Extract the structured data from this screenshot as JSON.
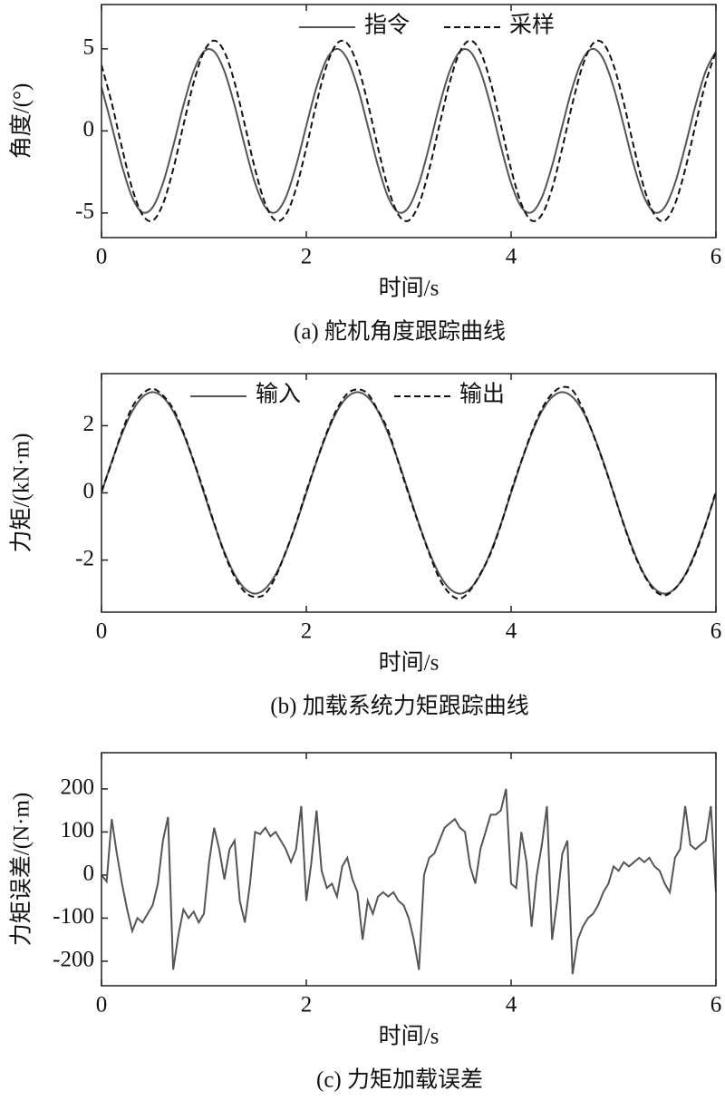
{
  "chart_data": [
    {
      "type": "line",
      "title": "(a) 舵机角度跟踪曲线",
      "xlabel": "时间/s",
      "ylabel": "角度/(°)",
      "xlim": [
        0,
        6
      ],
      "xticks": [
        0,
        2,
        4,
        6
      ],
      "ylim": [
        -6.5,
        7.7
      ],
      "yticks": [
        5,
        0,
        -5
      ],
      "legend": "upper center",
      "smooth": true,
      "x": [
        0,
        0.1,
        0.2,
        0.3,
        0.4,
        0.5,
        0.6,
        0.7,
        0.8,
        0.9,
        1,
        1.1,
        1.2,
        1.3,
        1.4,
        1.5,
        1.6,
        1.7,
        1.8,
        1.9,
        2,
        2.1,
        2.2,
        2.3,
        2.4,
        2.5,
        2.6,
        2.7,
        2.8,
        2.9,
        3,
        3.1,
        3.2,
        3.3,
        3.4,
        3.5,
        3.6,
        3.7,
        3.8,
        3.9,
        4,
        4.1,
        4.2,
        4.3,
        4.4,
        4.5,
        4.6,
        4.7,
        4.8,
        4.9,
        5,
        5.1,
        5.2,
        5.3,
        5.4,
        5.5,
        5.6,
        5.7,
        5.8,
        5.9,
        6
      ],
      "series": [
        {
          "name": "指令",
          "color": "#555555",
          "line_style": "solid",
          "values": [
            2.68,
            0.31,
            -2.13,
            -4.05,
            -4.96,
            -4.65,
            -3.19,
            -0.94,
            1.55,
            3.64,
            4.84,
            4.84,
            3.64,
            1.55,
            -0.94,
            -3.19,
            -4.65,
            -4.96,
            -4.05,
            -2.13,
            0.31,
            2.68,
            4.38,
            5,
            4.38,
            2.68,
            0.31,
            -2.13,
            -4.05,
            -4.96,
            -4.65,
            -3.19,
            -0.94,
            1.55,
            3.64,
            4.84,
            4.84,
            3.64,
            1.55,
            -0.94,
            -3.19,
            -4.65,
            -4.96,
            -4.05,
            -2.13,
            0.31,
            2.68,
            4.38,
            5,
            4.38,
            2.68,
            0.31,
            -2.13,
            -4.05,
            -4.96,
            -4.65,
            -3.19,
            -0.94,
            1.55,
            3.64,
            4.84
          ]
        },
        {
          "name": "采样",
          "color": "#111111",
          "line_style": "dashed",
          "values": [
            4.01,
            1.7,
            -1.03,
            -3.51,
            -5.11,
            -5.46,
            -4.45,
            -2.34,
            0.35,
            2.95,
            4.82,
            5.5,
            4.82,
            2.95,
            0.35,
            -2.34,
            -4.45,
            -5.46,
            -5.11,
            -3.51,
            -1.03,
            1.7,
            4.01,
            5.33,
            5.33,
            4.01,
            1.7,
            -1.03,
            -3.51,
            -5.11,
            -5.46,
            -4.45,
            -2.34,
            0.35,
            2.95,
            4.82,
            5.5,
            4.82,
            2.95,
            0.35,
            -2.34,
            -4.45,
            -5.46,
            -5.11,
            -3.51,
            -1.03,
            1.7,
            4.01,
            5.33,
            5.33,
            4.01,
            1.7,
            -1.03,
            -3.51,
            -5.11,
            -5.46,
            -4.45,
            -2.34,
            0.35,
            2.95,
            4.82
          ]
        }
      ]
    },
    {
      "type": "line",
      "title": "(b) 加载系统力矩跟踪曲线",
      "xlabel": "时间/s",
      "ylabel": "力矩/(kN·m)",
      "xlim": [
        0,
        6
      ],
      "xticks": [
        0,
        2,
        4,
        6
      ],
      "ylim": [
        -3.55,
        3.55
      ],
      "yticks": [
        2,
        0,
        -2
      ],
      "legend": "upper center",
      "smooth": true,
      "x": [
        0,
        0.1,
        0.2,
        0.3,
        0.4,
        0.5,
        0.6,
        0.7,
        0.8,
        0.9,
        1,
        1.1,
        1.2,
        1.3,
        1.4,
        1.5,
        1.6,
        1.7,
        1.8,
        1.9,
        2,
        2.1,
        2.2,
        2.3,
        2.4,
        2.5,
        2.6,
        2.7,
        2.8,
        2.9,
        3,
        3.1,
        3.2,
        3.3,
        3.4,
        3.5,
        3.6,
        3.7,
        3.8,
        3.9,
        4,
        4.1,
        4.2,
        4.3,
        4.4,
        4.5,
        4.6,
        4.7,
        4.8,
        4.9,
        5,
        5.1,
        5.2,
        5.3,
        5.4,
        5.5,
        5.6,
        5.7,
        5.8,
        5.9,
        6
      ],
      "series": [
        {
          "name": "输入",
          "color": "#555555",
          "line_style": "solid",
          "values": [
            0,
            0.93,
            1.76,
            2.43,
            2.85,
            3,
            2.85,
            2.43,
            1.76,
            0.93,
            0,
            -0.93,
            -1.76,
            -2.43,
            -2.85,
            -3,
            -2.85,
            -2.43,
            -1.76,
            -0.93,
            0,
            0.93,
            1.76,
            2.43,
            2.85,
            3,
            2.85,
            2.43,
            1.76,
            0.93,
            0,
            -0.93,
            -1.76,
            -2.43,
            -2.85,
            -3,
            -2.85,
            -2.43,
            -1.76,
            -0.93,
            0,
            0.93,
            1.76,
            2.43,
            2.85,
            3,
            2.85,
            2.43,
            1.76,
            0.93,
            0,
            -0.93,
            -1.76,
            -2.43,
            -2.85,
            -3,
            -2.85,
            -2.43,
            -1.76,
            -0.93,
            0
          ]
        },
        {
          "name": "输出",
          "color": "#111111",
          "line_style": "dashed",
          "values": [
            0.05,
            0.9,
            1.82,
            2.55,
            2.95,
            3.1,
            2.9,
            2.5,
            1.8,
            0.95,
            0.05,
            -0.9,
            -1.8,
            -2.5,
            -2.95,
            -3.1,
            -3,
            -2.5,
            -1.75,
            -0.9,
            0.05,
            0.95,
            1.8,
            2.5,
            2.95,
            3.08,
            2.95,
            2.45,
            1.85,
            0.9,
            -0.05,
            -0.95,
            -1.8,
            -2.55,
            -3,
            -3.15,
            -2.9,
            -2.4,
            -1.8,
            -0.95,
            0.05,
            0.95,
            1.8,
            2.5,
            2.95,
            3.15,
            3.05,
            2.5,
            1.75,
            0.9,
            0,
            -0.95,
            -1.8,
            -2.45,
            -2.9,
            -3.05,
            -2.85,
            -2.45,
            -1.8,
            -0.95,
            0.05
          ]
        }
      ]
    },
    {
      "type": "line",
      "title": "(c) 力矩加载误差",
      "xlabel": "时间/s",
      "ylabel": "力矩误差/(N·m)",
      "xlim": [
        0,
        6
      ],
      "xticks": [
        0,
        2,
        4,
        6
      ],
      "ylim": [
        -257,
        284
      ],
      "yticks": [
        200,
        100,
        0,
        -100,
        -200
      ],
      "smooth": false,
      "x": [
        0,
        0.05,
        0.1,
        0.15,
        0.2,
        0.25,
        0.3,
        0.35,
        0.4,
        0.45,
        0.5,
        0.55,
        0.6,
        0.65,
        0.7,
        0.75,
        0.8,
        0.85,
        0.9,
        0.95,
        1,
        1.05,
        1.1,
        1.15,
        1.2,
        1.25,
        1.3,
        1.35,
        1.4,
        1.45,
        1.5,
        1.55,
        1.6,
        1.65,
        1.7,
        1.75,
        1.8,
        1.85,
        1.9,
        1.95,
        2,
        2.05,
        2.1,
        2.15,
        2.2,
        2.25,
        2.3,
        2.35,
        2.4,
        2.45,
        2.5,
        2.55,
        2.6,
        2.65,
        2.7,
        2.75,
        2.8,
        2.85,
        2.9,
        2.95,
        3,
        3.05,
        3.1,
        3.15,
        3.2,
        3.25,
        3.3,
        3.35,
        3.4,
        3.45,
        3.5,
        3.55,
        3.6,
        3.65,
        3.7,
        3.75,
        3.8,
        3.85,
        3.9,
        3.95,
        4,
        4.05,
        4.1,
        4.15,
        4.2,
        4.25,
        4.3,
        4.35,
        4.4,
        4.45,
        4.5,
        4.55,
        4.6,
        4.65,
        4.7,
        4.75,
        4.8,
        4.85,
        4.9,
        4.95,
        5,
        5.05,
        5.1,
        5.15,
        5.2,
        5.25,
        5.3,
        5.35,
        5.4,
        5.45,
        5.5,
        5.55,
        5.6,
        5.65,
        5.7,
        5.75,
        5.8,
        5.85,
        5.9,
        5.95,
        6
      ],
      "series": [
        {
          "color": "#555555",
          "line_style": "solid",
          "values": [
            0,
            -15,
            130,
            50,
            -20,
            -80,
            -130,
            -100,
            -110,
            -90,
            -70,
            -20,
            80,
            135,
            -220,
            -140,
            -80,
            -100,
            -85,
            -110,
            -90,
            30,
            110,
            60,
            -10,
            60,
            80,
            -60,
            -110,
            -20,
            100,
            95,
            110,
            90,
            100,
            80,
            60,
            30,
            60,
            160,
            -60,
            30,
            150,
            10,
            -30,
            -20,
            -50,
            20,
            40,
            -10,
            -40,
            -150,
            -60,
            -90,
            -50,
            -40,
            -50,
            -40,
            -60,
            -70,
            -100,
            -150,
            -220,
            0,
            40,
            50,
            80,
            110,
            120,
            130,
            110,
            100,
            20,
            -20,
            60,
            100,
            140,
            140,
            150,
            200,
            -20,
            -30,
            100,
            30,
            -120,
            0,
            70,
            160,
            -150,
            -60,
            50,
            80,
            -230,
            -150,
            -120,
            -100,
            -90,
            -70,
            -40,
            -20,
            20,
            10,
            30,
            20,
            30,
            40,
            30,
            40,
            20,
            10,
            -20,
            -40,
            40,
            60,
            160,
            70,
            60,
            70,
            80,
            160,
            -40
          ]
        }
      ]
    }
  ]
}
